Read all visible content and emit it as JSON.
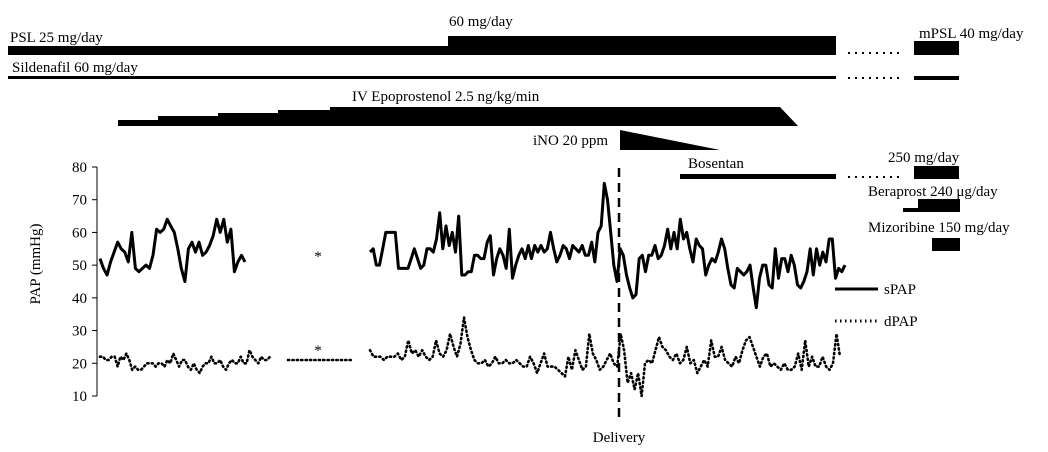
{
  "chart_data": {
    "type": "line",
    "ylabel": "PAP (mmHg)",
    "xlabel": "Delivery",
    "ylim": [
      10,
      80
    ],
    "yticks": [
      80,
      70,
      60,
      50,
      40,
      30,
      20,
      10
    ],
    "grid": false,
    "legend_position": "right",
    "gap_marker": "*",
    "series": [
      {
        "name": "sPAP",
        "style": "solid",
        "segments": [
          [
            52,
            49,
            47,
            51,
            54,
            57,
            55,
            54,
            51,
            60,
            49,
            48,
            49,
            50,
            49,
            53,
            61,
            60,
            61,
            64,
            62,
            60,
            55,
            49,
            45,
            55,
            57,
            54,
            57,
            53,
            54,
            56,
            59,
            64,
            60,
            64,
            57,
            61,
            48,
            51,
            53,
            51
          ],
          [
            54,
            55,
            50,
            50,
            55,
            60,
            60,
            60,
            60,
            49,
            49,
            49,
            49,
            52,
            55,
            52,
            49,
            50,
            55,
            55,
            54,
            58,
            66,
            55,
            62,
            56,
            60,
            54,
            65,
            47,
            47,
            48,
            48,
            53,
            53,
            52,
            52,
            57,
            59,
            47,
            52,
            55,
            53,
            49,
            61,
            46,
            50,
            53,
            55,
            52,
            56,
            52,
            56,
            54,
            56,
            54,
            55,
            60,
            55,
            51,
            53,
            56,
            55,
            52,
            56,
            55,
            54,
            56,
            53,
            53,
            57,
            51,
            60,
            62,
            75,
            70,
            60,
            50,
            45,
            55,
            53,
            47,
            43,
            40,
            41,
            52,
            53,
            48,
            53,
            53,
            56,
            52,
            53,
            56,
            61,
            55,
            60,
            55,
            64,
            58,
            60,
            55,
            51,
            58,
            56,
            55,
            47,
            50,
            52,
            51,
            54,
            58,
            55,
            49,
            44,
            43,
            49,
            48,
            47,
            48,
            50,
            43,
            37,
            46,
            50,
            50,
            44,
            43,
            55,
            46,
            52,
            52,
            48,
            53,
            50,
            44,
            43,
            45,
            48,
            55,
            47,
            55,
            50,
            54,
            51,
            58,
            58,
            46,
            49,
            48,
            50
          ]
        ]
      },
      {
        "name": "dPAP",
        "style": "dotted",
        "segments": [
          [
            22,
            22,
            21,
            21,
            22,
            22,
            19,
            22,
            21,
            23,
            21,
            18,
            19,
            18,
            18,
            19,
            20,
            20,
            20,
            19,
            20,
            20,
            19,
            21,
            20,
            23,
            21,
            19,
            21,
            21,
            19,
            18,
            20,
            18,
            17,
            19,
            20,
            20,
            22,
            20,
            20,
            21,
            19,
            18,
            20,
            21,
            20,
            20,
            22,
            20,
            20,
            24,
            22,
            21,
            20,
            22,
            21,
            21,
            22
          ],
          [
            21,
            21,
            21,
            21,
            21
          ],
          [
            24,
            22,
            22,
            22,
            21,
            22,
            22,
            22,
            23,
            21,
            22,
            27,
            23,
            24,
            22,
            24,
            22,
            21,
            22,
            27,
            23,
            22,
            24,
            29,
            25,
            22,
            26,
            34,
            28,
            24,
            21,
            20,
            20,
            21,
            19,
            20,
            22,
            20,
            20,
            21,
            20,
            20,
            21,
            20,
            19,
            19,
            22,
            20,
            17,
            20,
            23,
            19,
            19,
            19,
            18,
            17,
            16,
            22,
            18,
            24,
            21,
            18,
            19,
            29,
            23,
            21,
            18,
            19,
            21,
            23,
            20,
            19,
            29,
            24,
            14,
            17,
            12,
            17,
            10,
            20,
            21,
            20,
            24,
            28,
            25,
            24,
            22,
            21,
            23,
            20,
            21,
            25,
            20,
            21,
            17,
            19,
            21,
            19,
            27,
            22,
            22,
            25,
            21,
            20,
            19,
            22,
            20,
            24,
            27,
            28,
            25,
            22,
            19,
            22,
            23,
            19,
            20,
            19,
            18,
            20,
            18,
            18,
            19,
            23,
            18,
            27,
            19,
            22,
            19,
            19,
            22,
            19,
            18,
            20,
            29,
            22
          ]
        ]
      }
    ],
    "annotations": [
      "*",
      "*"
    ]
  },
  "treatments": {
    "psl_label": "PSL 25 mg/day",
    "psl_step_label": "60 mg/day",
    "mpsl_label": "mPSL 40 mg/day",
    "sildenafil_label": "Sildenafil 60 mg/day",
    "epoprostenol_label": "IV Epoprostenol 2.5 ng/kg/min",
    "ino_label": "iNO 20 ppm",
    "bosentan_label": "Bosentan",
    "bosentan_dose_label": "250 mg/day",
    "beraprost_label": "Beraprost 240 μg/day",
    "mizoribine_label": "Mizoribine 150 mg/day"
  },
  "colors": {
    "ink": "#000000",
    "background": "#ffffff"
  }
}
